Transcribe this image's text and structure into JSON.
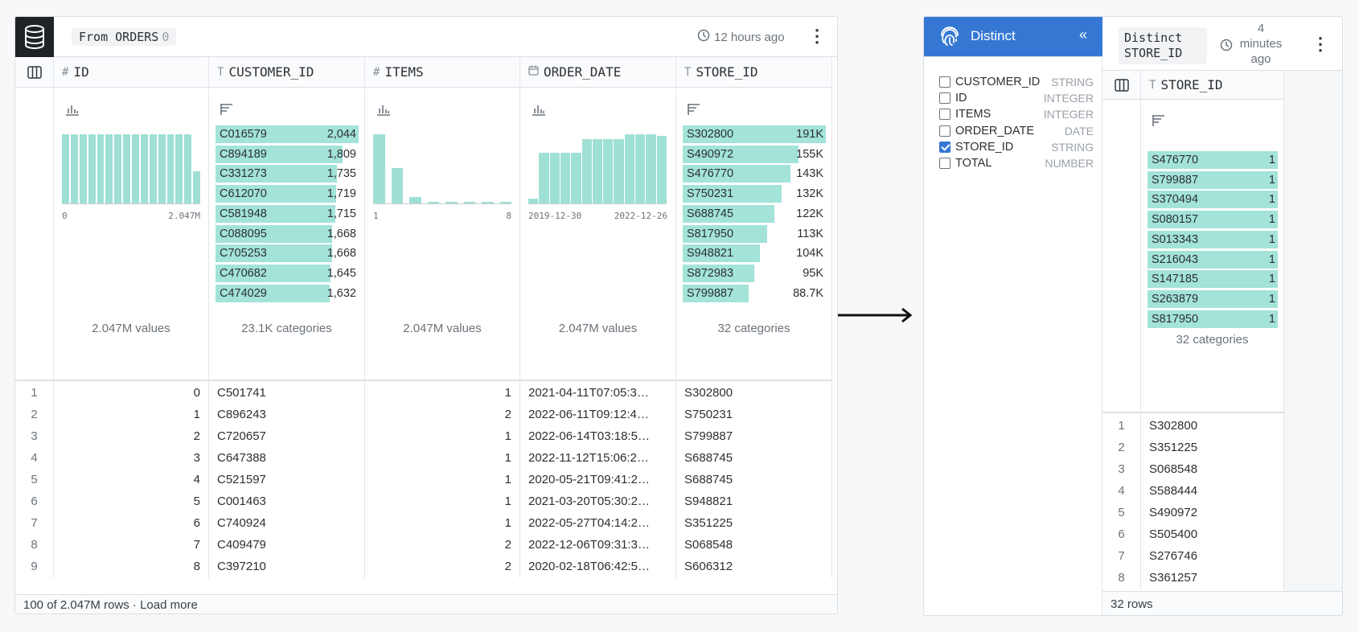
{
  "left": {
    "source_label": "From ORDERS",
    "source_count": "0",
    "updated": "12 hours ago",
    "columns": [
      {
        "type_glyph": "#",
        "name": "ID"
      },
      {
        "type_glyph": "T",
        "name": "CUSTOMER_ID"
      },
      {
        "type_glyph": "#",
        "name": "ITEMS"
      },
      {
        "type_glyph": "cal",
        "name": "ORDER_DATE"
      },
      {
        "type_glyph": "T",
        "name": "STORE_ID"
      }
    ],
    "summaries": {
      "id": {
        "hist": [
          1,
          1,
          1,
          1,
          1,
          1,
          1,
          1,
          1,
          1,
          1,
          1,
          1,
          1,
          1,
          0.47
        ],
        "min": "0",
        "max": "2.047M",
        "foot": "2.047M values"
      },
      "customer_id": {
        "top": [
          {
            "label": "C016579",
            "value": "2,044",
            "frac": 1.0
          },
          {
            "label": "C894189",
            "value": "1,809",
            "frac": 0.885
          },
          {
            "label": "C331273",
            "value": "1,735",
            "frac": 0.849
          },
          {
            "label": "C612070",
            "value": "1,719",
            "frac": 0.841
          },
          {
            "label": "C581948",
            "value": "1,715",
            "frac": 0.839
          },
          {
            "label": "C088095",
            "value": "1,668",
            "frac": 0.816
          },
          {
            "label": "C705253",
            "value": "1,668",
            "frac": 0.816
          },
          {
            "label": "C470682",
            "value": "1,645",
            "frac": 0.805
          },
          {
            "label": "C474029",
            "value": "1,632",
            "frac": 0.798
          }
        ],
        "foot": "23.1K categories"
      },
      "items": {
        "hist": [
          1,
          0.51,
          0.09,
          0.02,
          0.02,
          0.02,
          0.02,
          0.02
        ],
        "min": "1",
        "max": "8",
        "foot": "2.047M values"
      },
      "order_date": {
        "hist": [
          0.07,
          0.73,
          0.73,
          0.73,
          0.73,
          0.93,
          0.93,
          0.93,
          0.93,
          1,
          1,
          1,
          0.98
        ],
        "min": "2019-12-30",
        "max": "2022-12-26",
        "foot": "2.047M values"
      },
      "store_id": {
        "top": [
          {
            "label": "S302800",
            "value": "191K",
            "frac": 1.0
          },
          {
            "label": "S490972",
            "value": "155K",
            "frac": 0.81
          },
          {
            "label": "S476770",
            "value": "143K",
            "frac": 0.75
          },
          {
            "label": "S750231",
            "value": "132K",
            "frac": 0.69
          },
          {
            "label": "S688745",
            "value": "122K",
            "frac": 0.64
          },
          {
            "label": "S817950",
            "value": "113K",
            "frac": 0.59
          },
          {
            "label": "S948821",
            "value": "104K",
            "frac": 0.54
          },
          {
            "label": "S872983",
            "value": "95K",
            "frac": 0.5
          },
          {
            "label": "S799887",
            "value": "88.7K",
            "frac": 0.46
          }
        ],
        "foot": "32 categories"
      }
    },
    "rows": [
      {
        "n": "1",
        "id": "0",
        "customer_id": "C501741",
        "items": "1",
        "order_date": "2021-04-11T07:05:3…",
        "store_id": "S302800"
      },
      {
        "n": "2",
        "id": "1",
        "customer_id": "C896243",
        "items": "2",
        "order_date": "2022-06-11T09:12:4…",
        "store_id": "S750231"
      },
      {
        "n": "3",
        "id": "2",
        "customer_id": "C720657",
        "items": "1",
        "order_date": "2022-06-14T03:18:5…",
        "store_id": "S799887"
      },
      {
        "n": "4",
        "id": "3",
        "customer_id": "C647388",
        "items": "1",
        "order_date": "2022-11-12T15:06:2…",
        "store_id": "S688745"
      },
      {
        "n": "5",
        "id": "4",
        "customer_id": "C521597",
        "items": "1",
        "order_date": "2020-05-21T09:41:2…",
        "store_id": "S688745"
      },
      {
        "n": "6",
        "id": "5",
        "customer_id": "C001463",
        "items": "1",
        "order_date": "2021-03-20T05:30:2…",
        "store_id": "S948821"
      },
      {
        "n": "7",
        "id": "6",
        "customer_id": "C740924",
        "items": "1",
        "order_date": "2022-05-27T04:14:2…",
        "store_id": "S351225"
      },
      {
        "n": "8",
        "id": "7",
        "customer_id": "C409479",
        "items": "2",
        "order_date": "2022-12-06T09:31:3…",
        "store_id": "S068548"
      },
      {
        "n": "9",
        "id": "8",
        "customer_id": "C397210",
        "items": "2",
        "order_date": "2020-02-18T06:42:5…",
        "store_id": "S606312"
      }
    ],
    "footer": "100 of 2.047M rows · Load more"
  },
  "right": {
    "title": "Distinct",
    "collapse_glyph": "«",
    "op_label": "Distinct STORE_ID",
    "updated_line1": "4",
    "updated_line2": "minutes",
    "updated_line3": "ago",
    "fields": [
      {
        "name": "CUSTOMER_ID",
        "type": "STRING",
        "checked": false
      },
      {
        "name": "ID",
        "type": "INTEGER",
        "checked": false
      },
      {
        "name": "ITEMS",
        "type": "INTEGER",
        "checked": false
      },
      {
        "name": "ORDER_DATE",
        "type": "DATE",
        "checked": false
      },
      {
        "name": "STORE_ID",
        "type": "STRING",
        "checked": true
      },
      {
        "name": "TOTAL",
        "type": "NUMBER",
        "checked": false
      }
    ],
    "column": {
      "type_glyph": "T",
      "name": "STORE_ID"
    },
    "top": [
      {
        "label": "S476770",
        "value": "1"
      },
      {
        "label": "S799887",
        "value": "1"
      },
      {
        "label": "S370494",
        "value": "1"
      },
      {
        "label": "S080157",
        "value": "1"
      },
      {
        "label": "S013343",
        "value": "1"
      },
      {
        "label": "S216043",
        "value": "1"
      },
      {
        "label": "S147185",
        "value": "1"
      },
      {
        "label": "S263879",
        "value": "1"
      },
      {
        "label": "S817950",
        "value": "1"
      }
    ],
    "summary_foot": "32 categories",
    "rows": [
      {
        "n": "1",
        "store_id": "S302800"
      },
      {
        "n": "2",
        "store_id": "S351225"
      },
      {
        "n": "3",
        "store_id": "S068548"
      },
      {
        "n": "4",
        "store_id": "S588444"
      },
      {
        "n": "5",
        "store_id": "S490972"
      },
      {
        "n": "6",
        "store_id": "S505400"
      },
      {
        "n": "7",
        "store_id": "S276746"
      },
      {
        "n": "8",
        "store_id": "S361257"
      }
    ],
    "footer": "32 rows"
  },
  "colors": {
    "accent": "#3578d4",
    "bar": "#a3e3d8",
    "db_badge": "#1f2328"
  }
}
